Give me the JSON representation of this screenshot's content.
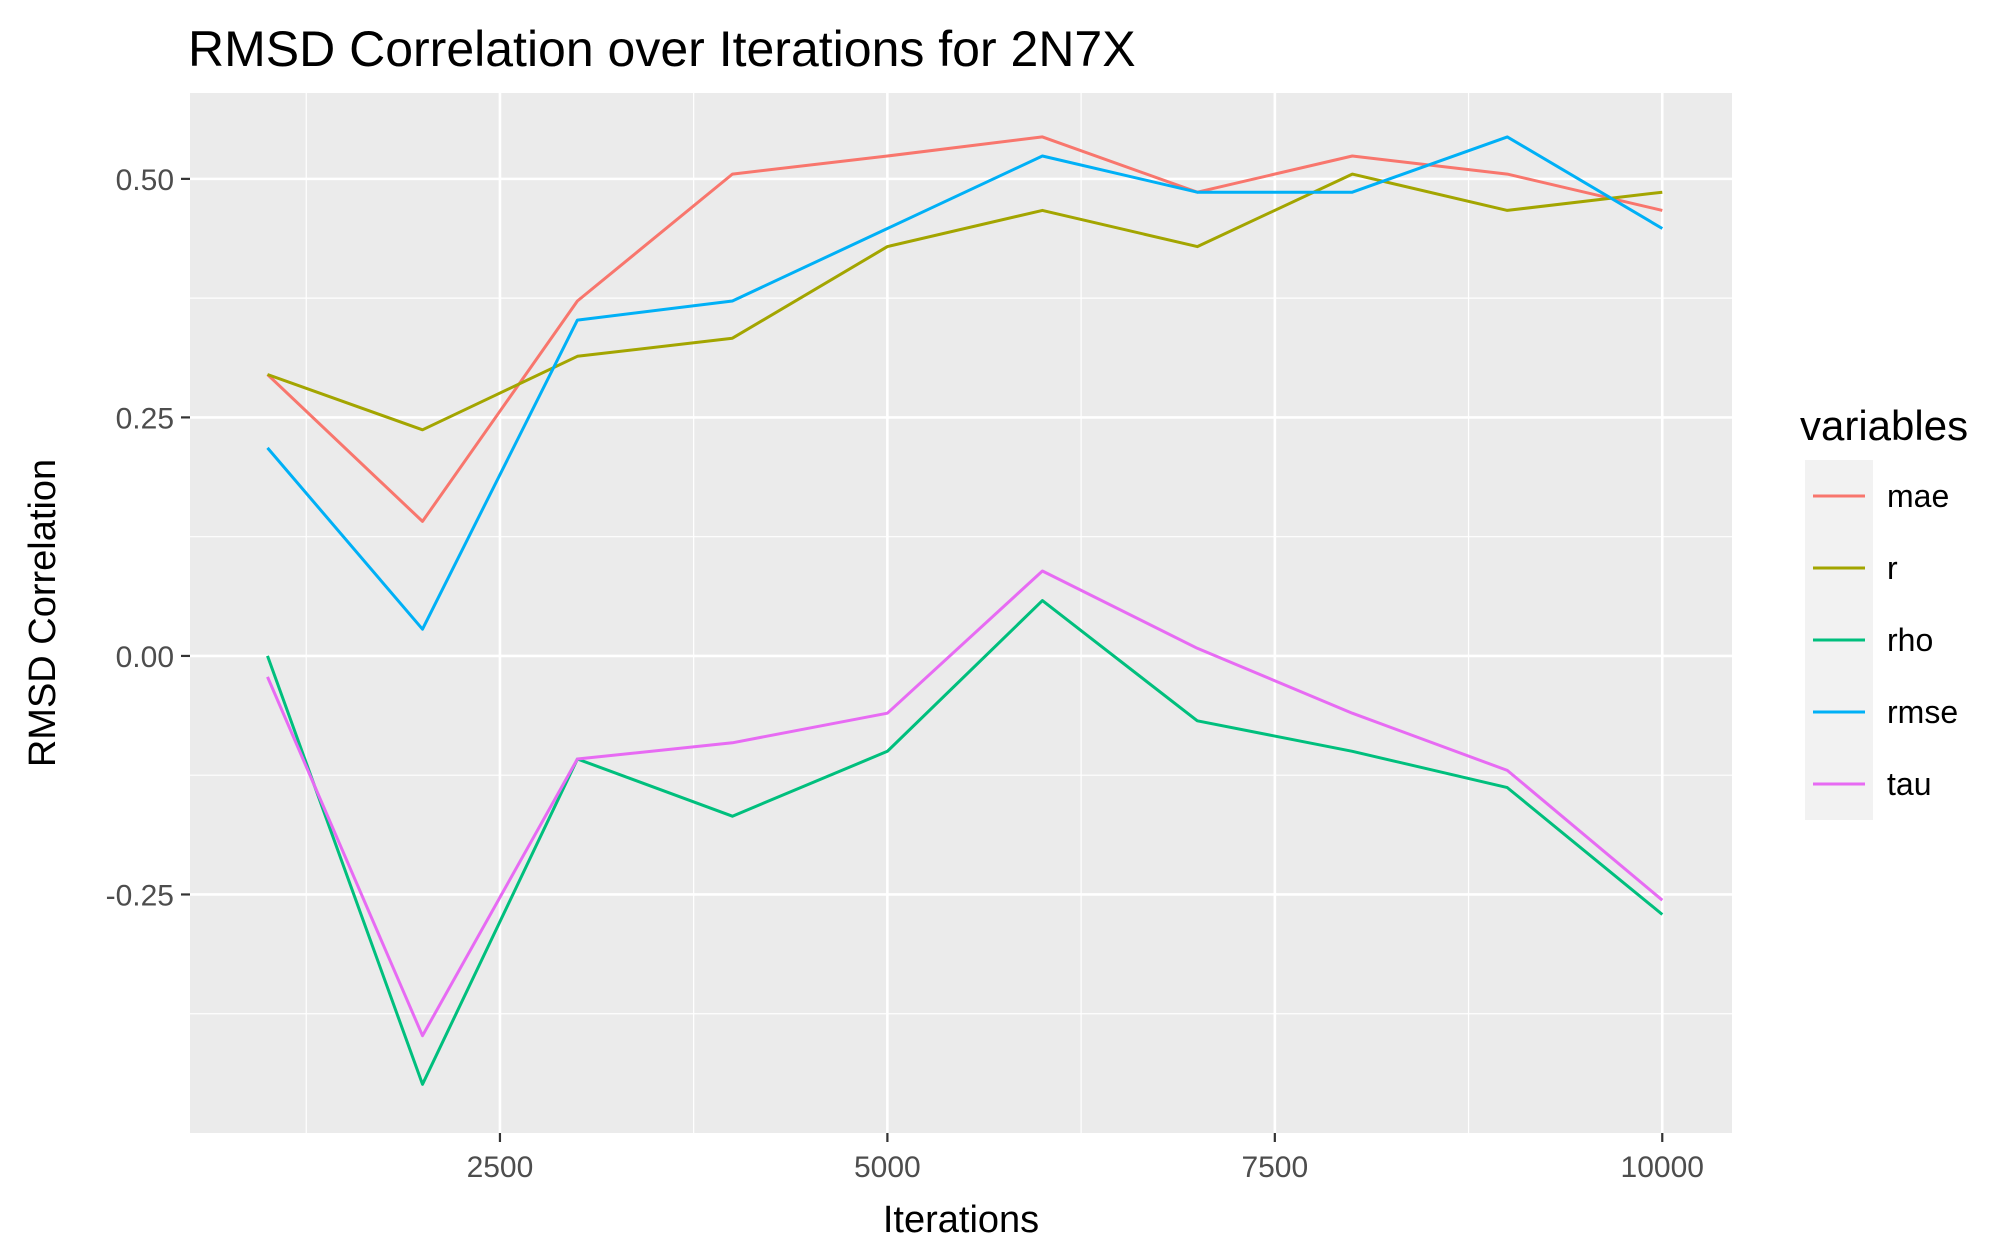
{
  "chart_data": {
    "type": "line",
    "title": "RMSD Correlation over Iterations for 2N7X",
    "xlabel": "Iterations",
    "ylabel": "RMSD Correlation",
    "xlim": [
      500,
      10450
    ],
    "ylim": [
      -0.5,
      0.59
    ],
    "x_ticks": [
      2500,
      5000,
      7500,
      10000
    ],
    "x_tick_labels": [
      "2500",
      "5000",
      "7500",
      "10000"
    ],
    "y_ticks": [
      -0.25,
      0.0,
      0.25,
      0.5
    ],
    "y_tick_labels": [
      "-0.25",
      "0.00",
      "0.25",
      "0.50"
    ],
    "grid": true,
    "legend": {
      "title": "variables",
      "position": "right"
    },
    "x": [
      1000,
      2000,
      3000,
      4000,
      5000,
      6000,
      7000,
      8000,
      9000,
      10000
    ],
    "series": [
      {
        "name": "mae",
        "color": "#F8766D",
        "values": [
          0.295,
          0.141,
          0.372,
          0.505,
          0.524,
          0.544,
          0.486,
          0.524,
          0.505,
          0.467
        ]
      },
      {
        "name": "r",
        "color": "#A3A500",
        "values": [
          0.295,
          0.237,
          0.314,
          0.333,
          0.429,
          0.467,
          0.429,
          0.505,
          0.467,
          0.486
        ]
      },
      {
        "name": "rho",
        "color": "#00BF7D",
        "values": [
          0.0,
          -0.449,
          -0.108,
          -0.168,
          -0.1,
          0.058,
          -0.068,
          -0.1,
          -0.138,
          -0.271
        ]
      },
      {
        "name": "rmse",
        "color": "#00B0F6",
        "values": [
          0.218,
          0.028,
          0.352,
          0.372,
          0.448,
          0.524,
          0.486,
          0.486,
          0.544,
          0.448
        ]
      },
      {
        "name": "tau",
        "color": "#E76BF3",
        "values": [
          -0.022,
          -0.398,
          -0.108,
          -0.091,
          -0.06,
          0.089,
          0.008,
          -0.06,
          -0.12,
          -0.256
        ]
      }
    ]
  }
}
